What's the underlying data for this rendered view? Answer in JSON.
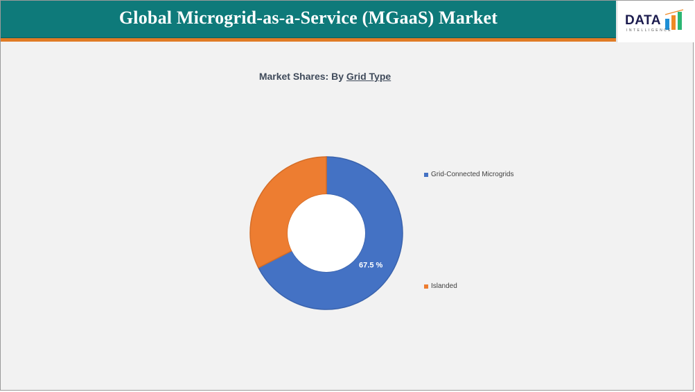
{
  "header": {
    "title": "Global Microgrid-as-a-Service (MGaaS) Market"
  },
  "logo": {
    "text": "DATA",
    "subtext": "INTELLIGENCE",
    "bar_colors": [
      "#1e8fd6",
      "#f08a24",
      "#2bb673"
    ]
  },
  "colors": {
    "header_bg": "#0e7a7a",
    "accent": "#e07b25",
    "series_blue": "#4472c4",
    "series_orange": "#ed7d31"
  },
  "chart_data": {
    "type": "pie",
    "variant": "donut",
    "title_prefix": "Market Shares: By ",
    "title_underlined": "Grid Type",
    "legend_position": "right",
    "slices": [
      {
        "label": "Grid-Connected Microgrids",
        "value": 67.5,
        "display": "67.5 %",
        "color": "#4472c4"
      },
      {
        "label": "Islanded",
        "value": 32.5,
        "display": "",
        "color": "#ed7d31"
      }
    ]
  }
}
